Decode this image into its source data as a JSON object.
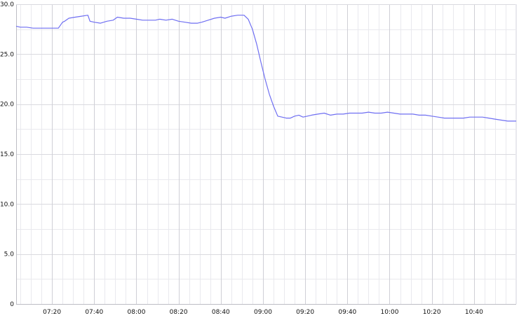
{
  "chart_data": {
    "type": "line",
    "title": "",
    "xlabel": "",
    "ylabel": "",
    "xlim": [
      "07:03",
      "11:00"
    ],
    "ylim": [
      0,
      30
    ],
    "grid": true,
    "legend": "none",
    "line_color": "#6f6ff2",
    "grid_color": "#d6d6dc",
    "y_ticks": [
      "0",
      "5.0",
      "10.0",
      "15.0",
      "20.0",
      "25.0",
      "30.0"
    ],
    "x_ticks": [
      "07:20",
      "07:40",
      "08:00",
      "08:20",
      "08:40",
      "09:00",
      "09:20",
      "09:40",
      "10:00",
      "10:20",
      "10:40"
    ],
    "series": [
      {
        "name": "",
        "x": [
          "07:03",
          "07:05",
          "07:08",
          "07:11",
          "07:14",
          "07:16",
          "07:18",
          "07:20",
          "07:23",
          "07:25",
          "07:26",
          "07:28",
          "07:31",
          "07:34",
          "07:37",
          "07:38",
          "07:40",
          "07:43",
          "07:46",
          "07:49",
          "07:51",
          "07:54",
          "07:57",
          "08:00",
          "08:03",
          "08:06",
          "08:09",
          "08:11",
          "08:14",
          "08:17",
          "08:20",
          "08:23",
          "08:26",
          "08:29",
          "08:31",
          "08:34",
          "08:37",
          "08:40",
          "08:42",
          "08:45",
          "08:48",
          "08:51",
          "08:53",
          "08:55",
          "08:57",
          "08:59",
          "09:01",
          "09:03",
          "09:05",
          "09:07",
          "09:09",
          "09:11",
          "09:13",
          "09:15",
          "09:17",
          "09:19",
          "09:21",
          "09:23",
          "09:26",
          "09:29",
          "09:32",
          "09:35",
          "09:38",
          "09:41",
          "09:44",
          "09:47",
          "09:50",
          "09:53",
          "09:56",
          "09:59",
          "10:02",
          "10:05",
          "10:08",
          "10:11",
          "10:14",
          "10:17",
          "10:20",
          "10:23",
          "10:26",
          "10:29",
          "10:32",
          "10:35",
          "10:38",
          "10:41",
          "10:44",
          "10:47",
          "10:50",
          "10:53",
          "10:56",
          "11:00"
        ],
        "y": [
          27.8,
          27.7,
          27.7,
          27.6,
          27.6,
          27.6,
          27.6,
          27.6,
          27.6,
          28.2,
          28.3,
          28.6,
          28.7,
          28.8,
          28.9,
          28.3,
          28.2,
          28.1,
          28.3,
          28.4,
          28.7,
          28.6,
          28.6,
          28.5,
          28.4,
          28.4,
          28.4,
          28.5,
          28.4,
          28.5,
          28.3,
          28.2,
          28.1,
          28.1,
          28.2,
          28.4,
          28.6,
          28.7,
          28.6,
          28.8,
          28.9,
          28.9,
          28.5,
          27.5,
          26.0,
          24.2,
          22.5,
          21.0,
          19.8,
          18.8,
          18.7,
          18.6,
          18.6,
          18.8,
          18.9,
          18.7,
          18.8,
          18.9,
          19.0,
          19.1,
          18.9,
          19.0,
          19.0,
          19.1,
          19.1,
          19.1,
          19.2,
          19.1,
          19.1,
          19.2,
          19.1,
          19.0,
          19.0,
          19.0,
          18.9,
          18.9,
          18.8,
          18.7,
          18.6,
          18.6,
          18.6,
          18.6,
          18.7,
          18.7,
          18.7,
          18.6,
          18.5,
          18.4,
          18.3,
          18.3
        ]
      }
    ]
  }
}
